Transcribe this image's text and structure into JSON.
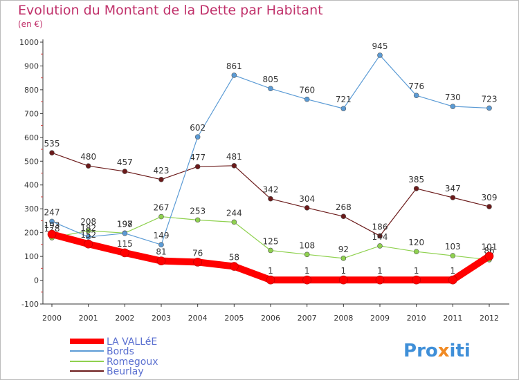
{
  "chart_data": {
    "type": "line",
    "title": "Evolution du Montant de la Dette par Habitant",
    "subtitle": "(en €)",
    "x": [
      "2000",
      "2001",
      "2002",
      "2003",
      "2004",
      "2005",
      "2006",
      "2007",
      "2008",
      "2009",
      "2010",
      "2011",
      "2012"
    ],
    "ylim": [
      -100,
      1000
    ],
    "yticks": [
      -100,
      0,
      100,
      200,
      300,
      400,
      500,
      600,
      700,
      800,
      900,
      1000
    ],
    "grid": false,
    "legend_position": "bottom-left",
    "series": [
      {
        "name": "LA VALLéE",
        "color": "#ff0000",
        "values": [
          193,
          152,
          115,
          81,
          76,
          58,
          1,
          1,
          1,
          1,
          1,
          1,
          101
        ]
      },
      {
        "name": "Bords",
        "color": "#5b9bd5",
        "values": [
          247,
          182,
          197,
          149,
          602,
          861,
          805,
          760,
          721,
          945,
          776,
          730,
          723
        ]
      },
      {
        "name": "Romegoux",
        "color": "#8fd14f",
        "values": [
          178,
          208,
          198,
          267,
          253,
          244,
          125,
          108,
          92,
          144,
          120,
          103,
          86
        ]
      },
      {
        "name": "Beurlay",
        "color": "#6b1a1a",
        "values": [
          535,
          480,
          457,
          423,
          477,
          481,
          342,
          304,
          268,
          186,
          385,
          347,
          309
        ]
      }
    ]
  },
  "logo": {
    "text": "Proxiti"
  }
}
